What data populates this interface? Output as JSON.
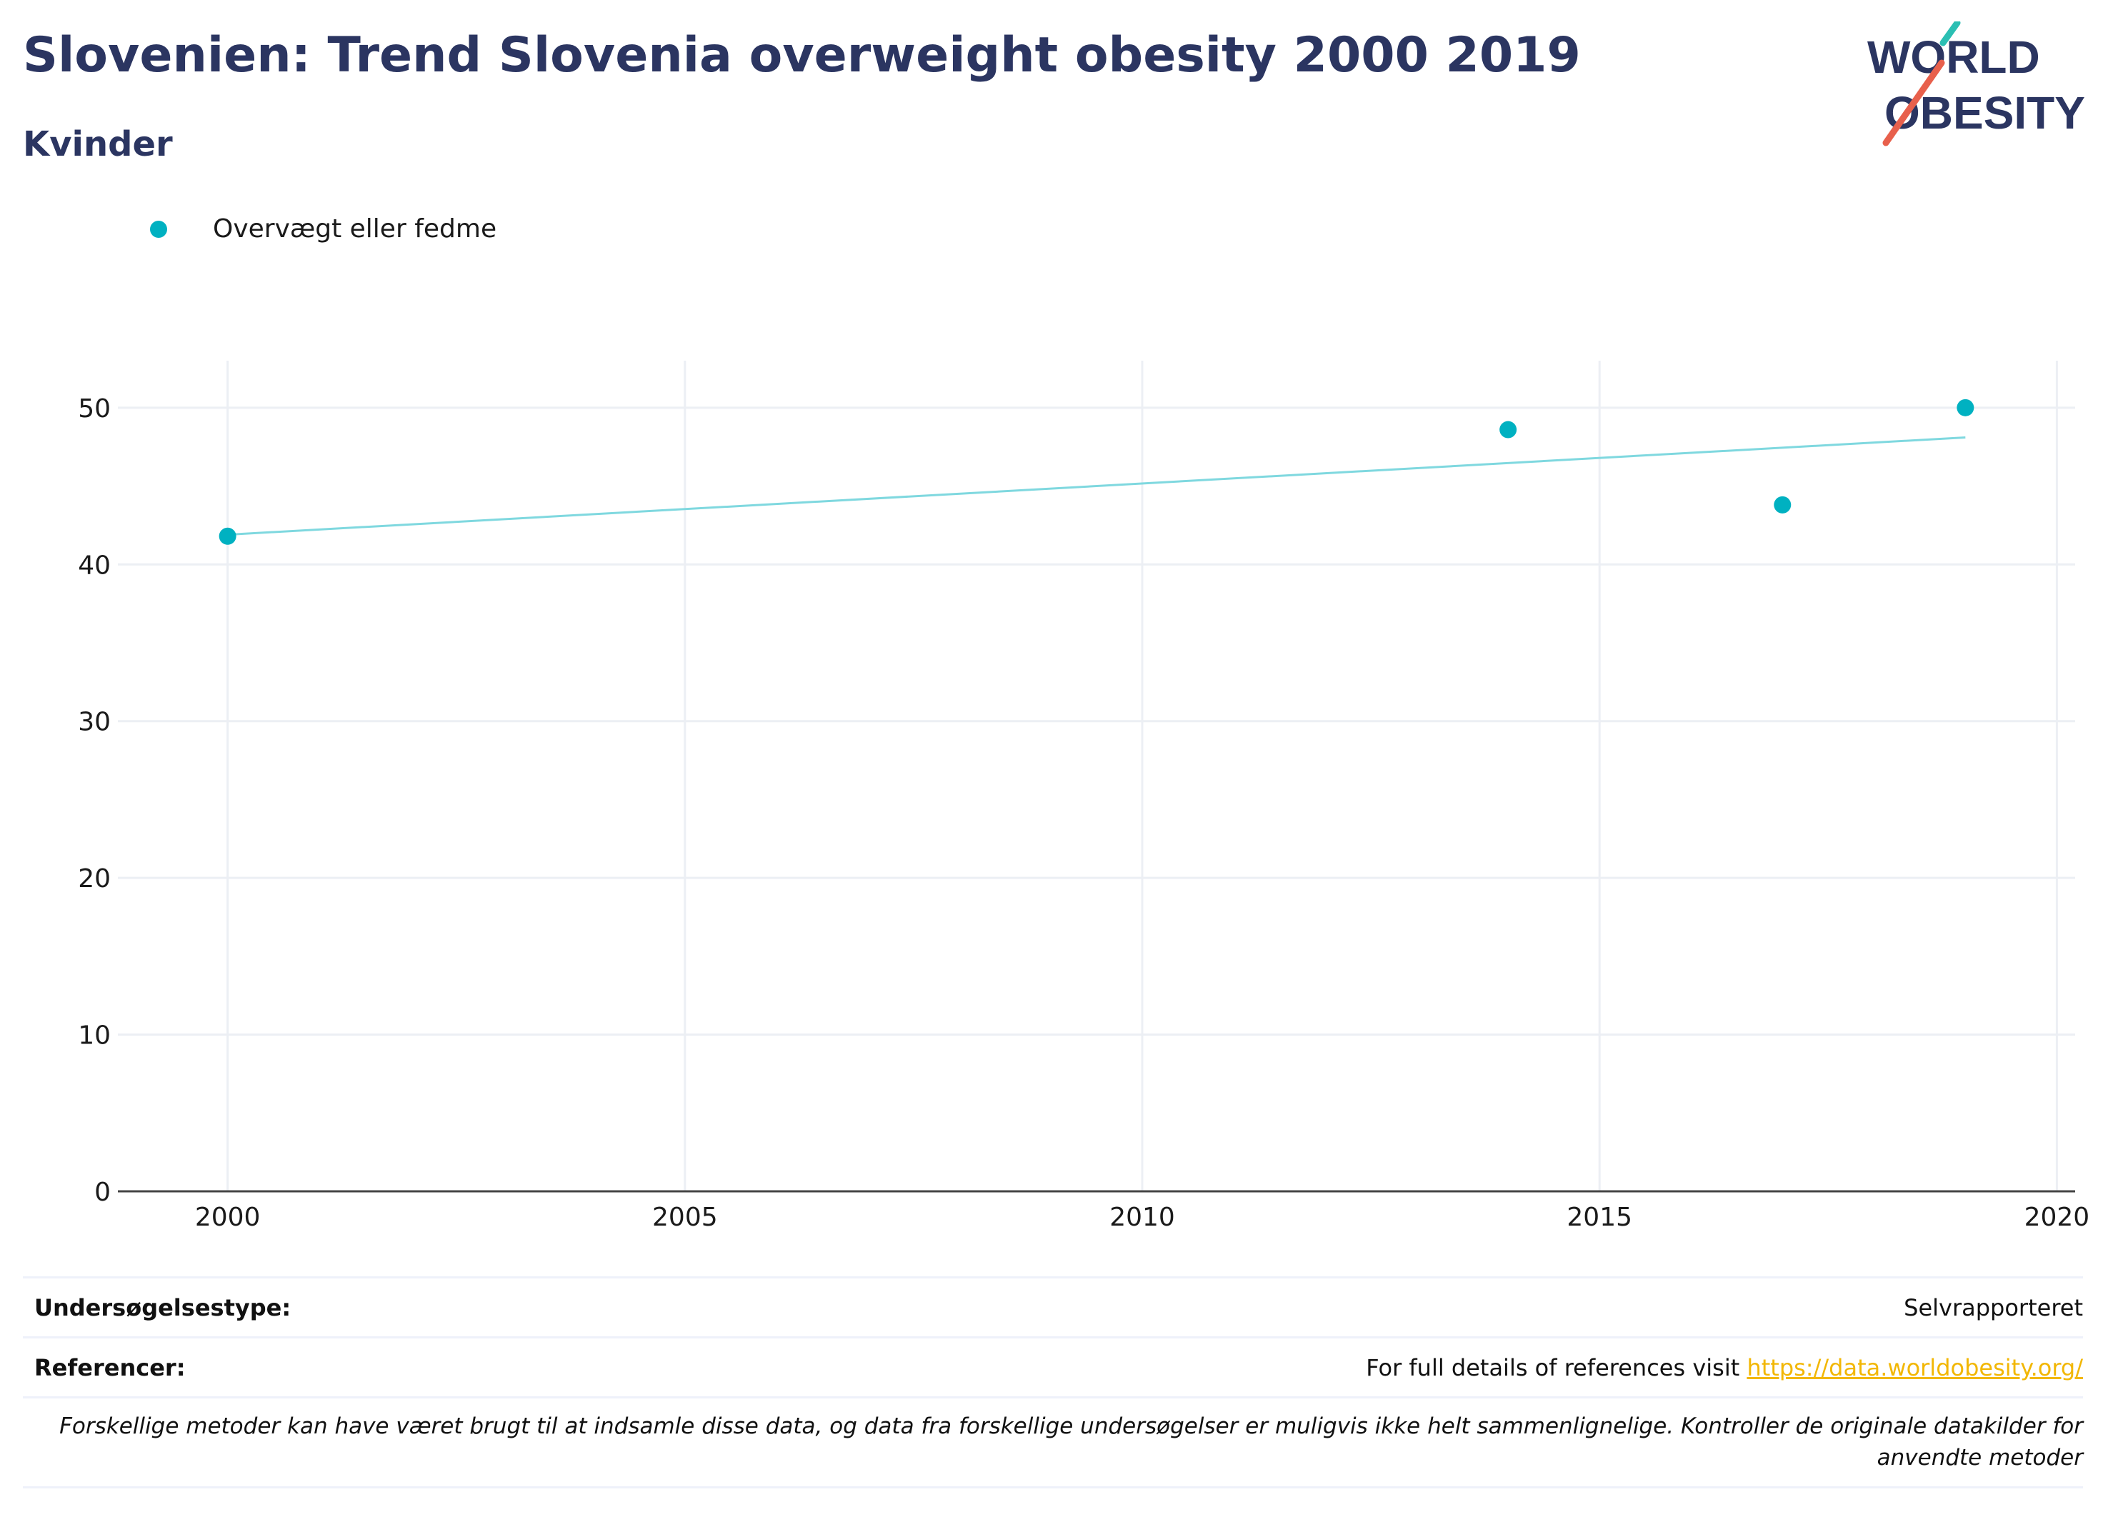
{
  "header": {
    "title": "Slovenien: Trend Slovenia overweight obesity 2000 2019",
    "subtitle": "Kvinder"
  },
  "logo": {
    "line1": "WORLD",
    "line2": "OBESITY",
    "accent_teal": "#2bbfb3",
    "accent_red": "#e8604c"
  },
  "chart_data": {
    "type": "scatter",
    "series": [
      {
        "name": "Overvægt eller fedme",
        "color": "#00b1c1",
        "points": [
          {
            "x": 2000,
            "y": 41.8
          },
          {
            "x": 2014,
            "y": 48.6
          },
          {
            "x": 2017,
            "y": 43.8
          },
          {
            "x": 2019,
            "y": 50.0
          }
        ]
      }
    ],
    "trendline": {
      "color": "#7fd8df",
      "start": {
        "x": 2000,
        "y": 41.9
      },
      "end": {
        "x": 2019,
        "y": 48.1
      }
    },
    "xlim": [
      1998.8,
      2020.2
    ],
    "ylim": [
      0,
      53
    ],
    "xticks": [
      2000,
      2005,
      2010,
      2015,
      2020
    ],
    "yticks": [
      0,
      10,
      20,
      30,
      40,
      50
    ],
    "grid": true,
    "legend_position": "top-left"
  },
  "footer": {
    "survey_type_label": "Undersøgelsestype:",
    "survey_type_value": "Selvrapporteret",
    "references_label": "Referencer:",
    "references_text": "For full details of references visit ",
    "references_link": "https://data.worldobesity.org/",
    "disclaimer_line1": "Forskellige metoder kan have været brugt til at indsamle disse data, og data fra forskellige undersøgelser er muligvis ikke helt sammenlignelige. Kontroller de originale datakilder for",
    "disclaimer_line2": "anvendte metoder"
  }
}
